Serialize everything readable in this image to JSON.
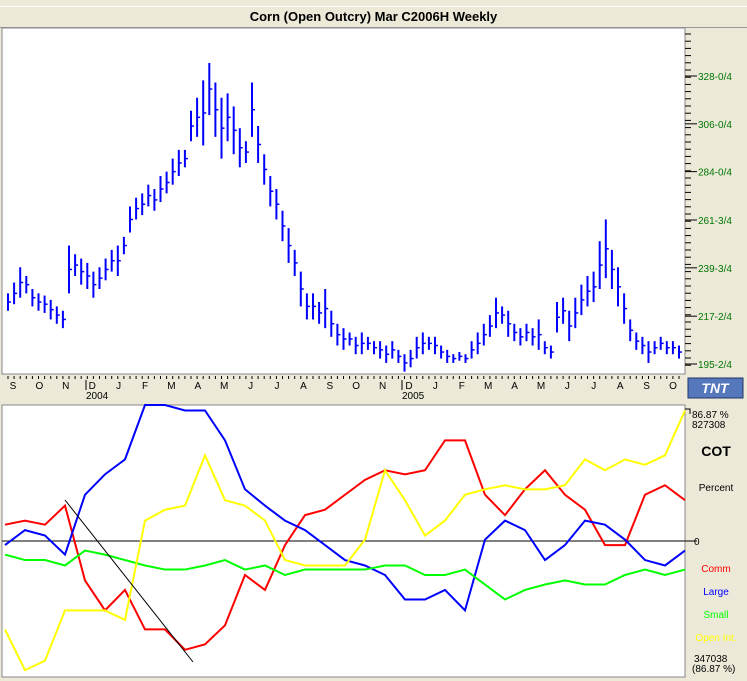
{
  "title": "Corn (Open Outcry) Mar C2006H Weekly",
  "chart_data": [
    {
      "type": "ohlc",
      "title": "Corn (Open Outcry) Mar C2006H Weekly",
      "color": "#0000ff",
      "ylim": [
        191,
        336
      ],
      "y_ticks": [
        "328-0/4",
        "306-0/4",
        "284-0/4",
        "261-3/4",
        "239-3/4",
        "217-2/4",
        "195-2/4"
      ],
      "y_tick_values": [
        328,
        306,
        284,
        261.75,
        239.75,
        217.5,
        195.5
      ],
      "x_months": [
        "S",
        "O",
        "N",
        "D",
        "J",
        "F",
        "M",
        "A",
        "M",
        "J",
        "J",
        "A",
        "S",
        "O",
        "N",
        "D",
        "J",
        "F",
        "M",
        "A",
        "M",
        "J",
        "J",
        "A",
        "S",
        "O"
      ],
      "x_years": [
        "2004",
        "2005"
      ],
      "bars": [
        [
          220,
          228
        ],
        [
          223,
          233
        ],
        [
          226,
          240
        ],
        [
          228,
          236
        ],
        [
          222,
          230
        ],
        [
          220,
          228
        ],
        [
          219,
          227
        ],
        [
          216,
          225
        ],
        [
          214,
          222
        ],
        [
          212,
          220
        ],
        [
          228,
          250
        ],
        [
          236,
          246
        ],
        [
          232,
          244
        ],
        [
          230,
          242
        ],
        [
          226,
          238
        ],
        [
          230,
          240
        ],
        [
          234,
          244
        ],
        [
          238,
          248
        ],
        [
          236,
          250
        ],
        [
          246,
          254
        ],
        [
          256,
          268
        ],
        [
          262,
          272
        ],
        [
          264,
          274
        ],
        [
          268,
          278
        ],
        [
          266,
          276
        ],
        [
          270,
          282
        ],
        [
          274,
          284
        ],
        [
          278,
          290
        ],
        [
          282,
          294
        ],
        [
          286,
          294
        ],
        [
          298,
          312
        ],
        [
          300,
          318
        ],
        [
          296,
          326
        ],
        [
          310,
          334
        ],
        [
          300,
          325
        ],
        [
          290,
          318
        ],
        [
          298,
          320
        ],
        [
          292,
          314
        ],
        [
          286,
          304
        ],
        [
          288,
          298
        ],
        [
          300,
          325
        ],
        [
          288,
          305
        ],
        [
          278,
          292
        ],
        [
          268,
          282
        ],
        [
          262,
          276
        ],
        [
          252,
          266
        ],
        [
          242,
          258
        ],
        [
          236,
          248
        ],
        [
          222,
          238
        ],
        [
          216,
          228
        ],
        [
          216,
          228
        ],
        [
          214,
          224
        ],
        [
          212,
          230
        ],
        [
          208,
          220
        ],
        [
          204,
          214
        ],
        [
          202,
          212
        ],
        [
          204,
          210
        ],
        [
          200,
          208
        ],
        [
          200,
          210
        ],
        [
          202,
          208
        ],
        [
          200,
          206
        ],
        [
          198,
          206
        ],
        [
          196,
          204
        ],
        [
          198,
          206
        ],
        [
          196,
          202
        ],
        [
          192,
          200
        ],
        [
          194,
          202
        ],
        [
          198,
          208
        ],
        [
          200,
          210
        ],
        [
          202,
          208
        ],
        [
          200,
          208
        ],
        [
          198,
          204
        ],
        [
          196,
          202
        ],
        [
          196,
          200
        ],
        [
          197,
          201
        ],
        [
          196,
          200
        ],
        [
          198,
          206
        ],
        [
          200,
          210
        ],
        [
          204,
          214
        ],
        [
          208,
          218
        ],
        [
          212,
          226
        ],
        [
          214,
          222
        ],
        [
          208,
          220
        ],
        [
          206,
          214
        ],
        [
          204,
          212
        ],
        [
          206,
          214
        ],
        [
          204,
          212
        ],
        [
          202,
          216
        ],
        [
          200,
          206
        ],
        [
          198,
          204
        ],
        [
          210,
          224
        ],
        [
          214,
          226
        ],
        [
          206,
          220
        ],
        [
          212,
          226
        ],
        [
          218,
          232
        ],
        [
          222,
          236
        ],
        [
          224,
          238
        ],
        [
          230,
          252
        ],
        [
          235,
          262
        ],
        [
          230,
          248
        ],
        [
          222,
          240
        ],
        [
          214,
          228
        ],
        [
          206,
          216
        ],
        [
          202,
          210
        ],
        [
          200,
          208
        ],
        [
          196,
          206
        ],
        [
          200,
          206
        ],
        [
          202,
          208
        ],
        [
          200,
          206
        ],
        [
          200,
          206
        ],
        [
          198,
          204
        ]
      ]
    },
    {
      "type": "line",
      "title": "COT",
      "ylabel": "Percent",
      "ylim": [
        -100,
        100
      ],
      "top_label": "86.87 %",
      "top_value": "827308",
      "zero_label": "0",
      "bottom_value": "347038",
      "bottom_label": "(86.87 %)",
      "series": [
        {
          "name": "Comm",
          "color": "#ff0000",
          "values": [
            12,
            15,
            12,
            26,
            -29,
            -51,
            -36,
            -65,
            -65,
            -80,
            -76,
            -62,
            -25,
            -36,
            -3,
            19,
            23,
            34,
            45,
            52,
            49,
            52,
            74,
            74,
            34,
            19,
            38,
            52,
            34,
            23,
            -3,
            -3,
            34,
            41,
            30
          ]
        },
        {
          "name": "Large",
          "color": "#0000ff",
          "values": [
            -3,
            8,
            4,
            -10,
            34,
            49,
            60,
            100,
            100,
            96,
            96,
            74,
            38,
            26,
            15,
            8,
            -3,
            -14,
            -18,
            -25,
            -43,
            -43,
            -36,
            -51,
            1,
            15,
            8,
            -14,
            -3,
            15,
            12,
            1,
            -14,
            -18,
            -7
          ]
        },
        {
          "name": "Small",
          "color": "#00ff00",
          "values": [
            -10,
            -14,
            -14,
            -18,
            -7,
            -10,
            -14,
            -18,
            -21,
            -21,
            -18,
            -14,
            -21,
            -18,
            -25,
            -21,
            -21,
            -21,
            -21,
            -18,
            -18,
            -25,
            -25,
            -21,
            -32,
            -43,
            -36,
            -32,
            -29,
            -32,
            -32,
            -25,
            -21,
            -25,
            -21
          ]
        },
        {
          "name": "Open Int.",
          "color": "#ffff00",
          "values": [
            -65,
            -95,
            -88,
            -51,
            -51,
            -51,
            -58,
            15,
            23,
            26,
            63,
            30,
            26,
            15,
            -14,
            -18,
            -18,
            -18,
            1,
            52,
            30,
            4,
            15,
            34,
            38,
            41,
            38,
            38,
            41,
            60,
            52,
            60,
            56,
            63,
            96
          ]
        }
      ]
    }
  ],
  "logo": "TNT"
}
